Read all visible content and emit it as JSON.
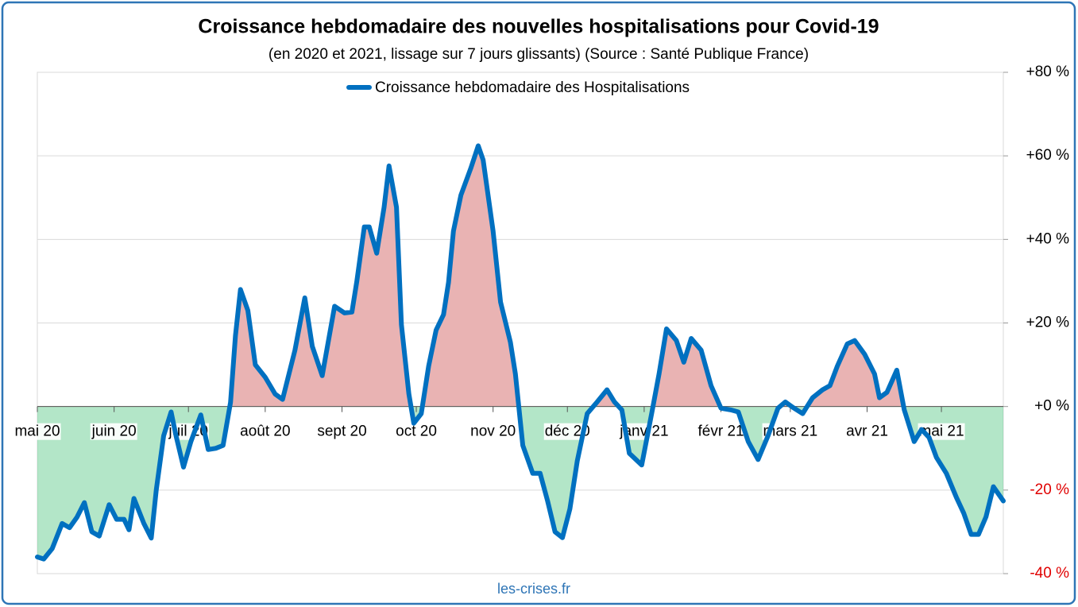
{
  "chart_data": {
    "type": "line",
    "title": "Croissance hebdomadaire des nouvelles hospitalisations pour Covid-19",
    "subtitle": "(en 2020 et 2021, lissage sur 7 jours glissants) (Source : Santé Publique France)",
    "source": "les-crises.fr",
    "x": [
      0,
      2.6,
      6,
      10,
      13,
      16,
      19,
      22,
      25,
      29,
      32,
      35,
      37,
      39,
      43,
      46,
      48,
      51,
      54,
      56,
      59,
      62,
      66,
      69,
      72,
      75,
      78,
      80,
      82,
      85,
      88,
      92,
      96,
      99,
      104,
      108,
      111,
      115,
      120,
      124,
      127,
      129,
      132,
      134,
      137,
      140,
      142,
      145,
      147,
      150,
      152,
      155,
      158,
      161,
      164,
      166,
      168,
      171,
      175,
      178,
      180,
      184,
      187,
      191,
      193,
      196,
      200,
      203,
      206,
      209,
      212,
      215,
      218,
      222,
      226,
      230,
      233,
      236,
      239,
      244,
      248,
      251,
      254,
      258,
      261,
      264,
      268,
      272,
      276,
      280,
      283,
      287,
      291,
      295,
      299,
      302,
      305,
      309,
      313,
      317,
      320,
      323,
      327,
      330,
      334,
      338,
      340,
      343,
      347,
      350,
      354,
      357,
      360,
      363,
      367,
      371,
      374,
      377,
      380,
      383,
      386,
      390
    ],
    "series": [
      {
        "name": "Croissance hebdomadaire des Hospitalisations",
        "color": "#0070c0",
        "values": [
          -36,
          -36.5,
          -34,
          -28,
          -29,
          -26.5,
          -23,
          -30,
          -31,
          -23.5,
          -27,
          -27,
          -29.5,
          -22,
          -28,
          -31.5,
          -20,
          -7,
          -1.3,
          -7,
          -14.5,
          -8.4,
          -2,
          -10.3,
          -10,
          -9.3,
          1,
          17,
          28,
          23,
          10,
          7,
          3,
          1.7,
          13.5,
          26,
          14.4,
          7.4,
          24,
          22.4,
          22.6,
          30,
          43,
          43,
          36.7,
          47.7,
          57.6,
          47.7,
          19.6,
          3,
          -4,
          -1.7,
          9.7,
          18.3,
          22,
          29.7,
          42,
          50.6,
          57,
          62.4,
          59,
          42,
          25,
          15.4,
          7.8,
          -9.3,
          -16,
          -16,
          -22.6,
          -30,
          -31.4,
          -24.5,
          -13,
          -1.7,
          1.1,
          4,
          1.1,
          -0.8,
          -11.2,
          -14,
          -1.7,
          7.8,
          18.6,
          15.8,
          10.6,
          16.3,
          13.5,
          5,
          -0.4,
          -0.8,
          -1.3,
          -8.4,
          -12.7,
          -7,
          -0.4,
          1.1,
          -0.2,
          -1.7,
          2.1,
          4,
          5,
          9.7,
          15,
          15.8,
          12.5,
          7.8,
          2.1,
          3.4,
          8.7,
          -0.8,
          -8.4,
          -5.5,
          -7.4,
          -12.2,
          -16,
          -21.7,
          -25.5,
          -30.6,
          -30.6,
          -26.4,
          -19.2,
          -22.6
        ]
      }
    ],
    "xlim": [
      0,
      390
    ],
    "xticks": [
      {
        "value": 0,
        "label": "mai 20"
      },
      {
        "value": 31,
        "label": "juin 20"
      },
      {
        "value": 61,
        "label": "juil 20"
      },
      {
        "value": 92,
        "label": "août 20"
      },
      {
        "value": 123,
        "label": "sept 20"
      },
      {
        "value": 153,
        "label": "oct 20"
      },
      {
        "value": 184,
        "label": "nov 20"
      },
      {
        "value": 214,
        "label": "déc 20"
      },
      {
        "value": 245,
        "label": "janv 21"
      },
      {
        "value": 276,
        "label": "févr 21"
      },
      {
        "value": 304,
        "label": "mars 21"
      },
      {
        "value": 335,
        "label": "avr 21"
      },
      {
        "value": 365,
        "label": "mai 21"
      }
    ],
    "ylim": [
      -40,
      80
    ],
    "yticks": [
      {
        "value": -40,
        "label": "-40 %"
      },
      {
        "value": -20,
        "label": "-20 %"
      },
      {
        "value": 0,
        "label": "+0 %"
      },
      {
        "value": 20,
        "label": "+20 %"
      },
      {
        "value": 40,
        "label": "+40 %"
      },
      {
        "value": 60,
        "label": "+60 %"
      },
      {
        "value": 80,
        "label": "+80 %"
      }
    ],
    "grid": true,
    "legend": "top",
    "positive_fill": "#e9b3b3",
    "negative_fill": "#b3e6c8",
    "negative_tick_color": "#e00000"
  }
}
